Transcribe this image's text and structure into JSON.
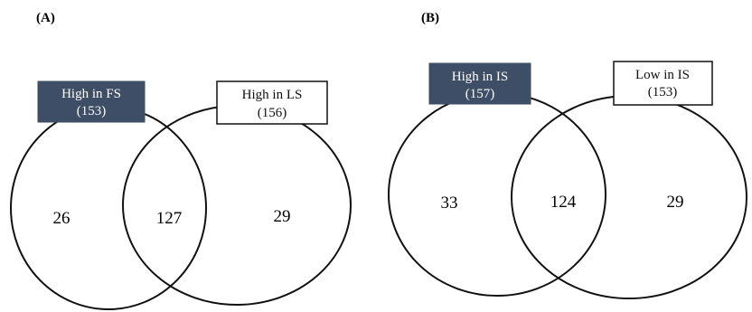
{
  "panels": [
    {
      "label": "(A)",
      "sets": [
        {
          "name": "High in FS",
          "total": "(153)",
          "fill": "#3d4e66",
          "text_color": "#ffffff"
        },
        {
          "name": "High in LS",
          "total": "(156)",
          "fill": "#ffffff",
          "text_color": "#111111"
        }
      ],
      "counts": {
        "left_only": "26",
        "overlap": "127",
        "right_only": "29"
      }
    },
    {
      "label": "(B)",
      "sets": [
        {
          "name": "High in IS",
          "total": "(157)",
          "fill": "#3d4e66",
          "text_color": "#ffffff"
        },
        {
          "name": "Low in IS",
          "total": "(153)",
          "fill": "#ffffff",
          "text_color": "#111111"
        }
      ],
      "counts": {
        "left_only": "33",
        "overlap": "124",
        "right_only": "29"
      }
    }
  ]
}
